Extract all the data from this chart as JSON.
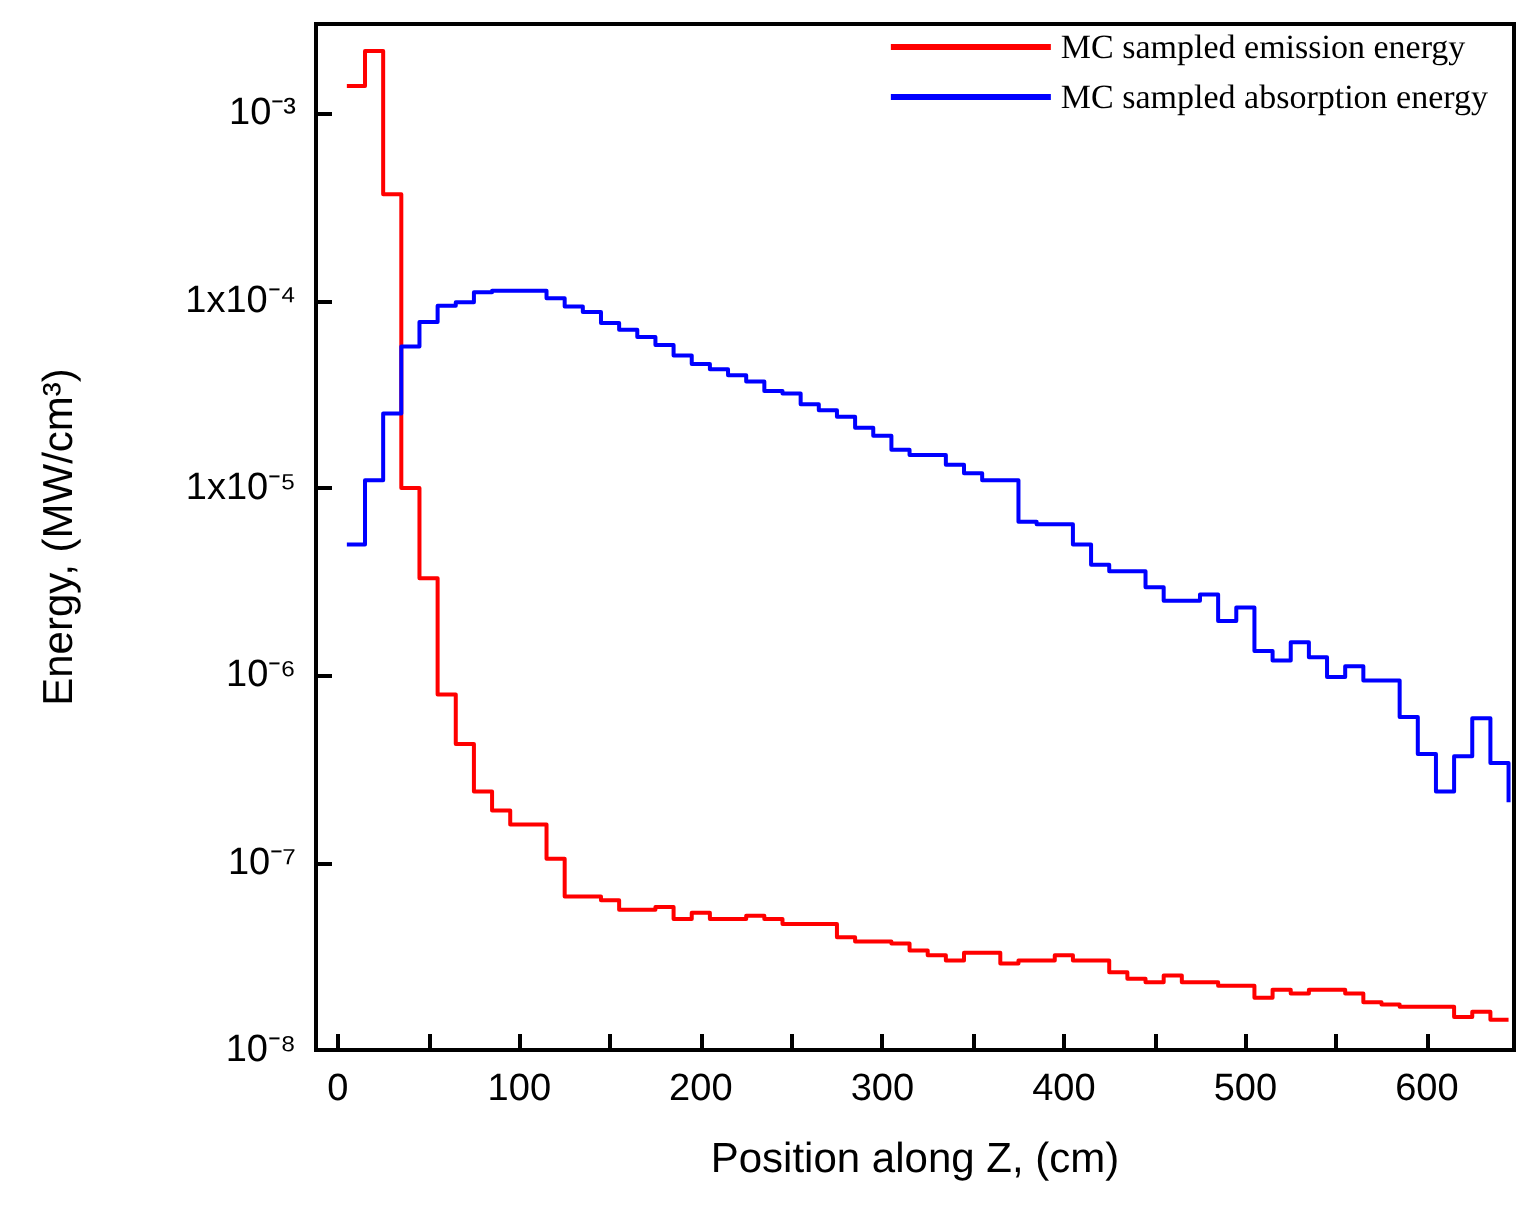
{
  "chart_data": {
    "type": "step",
    "xlabel": "Position along Z, (cm)",
    "ylabel": "Energy, (MW/cm³)",
    "log": "y",
    "legend": "top right",
    "grid": false,
    "marker": "none",
    "line_style": "solid",
    "x": [
      5,
      15,
      25,
      35,
      45,
      55,
      65,
      75,
      85,
      95,
      105,
      115,
      125,
      135,
      145,
      155,
      165,
      175,
      185,
      195,
      205,
      215,
      225,
      235,
      245,
      255,
      265,
      275,
      285,
      295,
      305,
      315,
      325,
      335,
      345,
      355,
      365,
      375,
      385,
      395,
      405,
      415,
      425,
      435,
      445,
      455,
      465,
      475,
      485,
      495,
      505,
      515,
      525,
      535,
      545,
      555,
      565,
      575,
      585,
      595,
      605,
      615,
      625,
      635,
      645
    ],
    "xlim": [
      -12,
      648
    ],
    "xticks": [
      0,
      {
        "value": 50,
        "label": null
      },
      100,
      {
        "value": 150,
        "label": null
      },
      200,
      {
        "value": 250,
        "label": null
      },
      300,
      {
        "value": 350,
        "label": null
      },
      400,
      {
        "value": 450,
        "label": null
      },
      500,
      {
        "value": 550,
        "label": null
      },
      600
    ],
    "ylim": [
      1e-08,
      0.003
    ],
    "yticks": [
      {
        "value": 1e-08,
        "label": "10⁻⁸"
      },
      {
        "value": 1e-07,
        "label": "10⁻⁷"
      },
      {
        "value": 1e-06,
        "label": "10⁻⁶"
      },
      {
        "value": 1e-05,
        "label": "1x10⁻⁵"
      },
      {
        "value": 0.0001,
        "label": "1x10⁻⁴"
      },
      {
        "value": 0.001,
        "label": "10⁻³"
      }
    ],
    "series": [
      {
        "name": "MC sampled emission energy",
        "color": "#ff0000",
        "values": [
          0.0014,
          0.00215,
          0.00037,
          1e-05,
          3.3e-06,
          7.9e-07,
          4.3e-07,
          2.4e-07,
          1.9e-07,
          1.6e-07,
          1.6e-07,
          1.05e-07,
          6.6e-08,
          6.6e-08,
          6.3e-08,
          5.6e-08,
          5.6e-08,
          5.8e-08,
          5e-08,
          5.4e-08,
          5e-08,
          5e-08,
          5.2e-08,
          5e-08,
          4.7e-08,
          4.7e-08,
          4.7e-08,
          4e-08,
          3.8e-08,
          3.8e-08,
          3.7e-08,
          3.4e-08,
          3.2e-08,
          3e-08,
          3.3e-08,
          3.3e-08,
          2.9e-08,
          3e-08,
          3e-08,
          3.2e-08,
          3e-08,
          3e-08,
          2.6e-08,
          2.4e-08,
          2.3e-08,
          2.5e-08,
          2.3e-08,
          2.3e-08,
          2.2e-08,
          2.2e-08,
          1.9e-08,
          2.1e-08,
          2e-08,
          2.1e-08,
          2.1e-08,
          2e-08,
          1.8e-08,
          1.75e-08,
          1.7e-08,
          1.7e-08,
          1.7e-08,
          1.5e-08,
          1.6e-08,
          1.45e-08,
          1.45e-08
        ]
      },
      {
        "name": "MC sampled absorption energy",
        "color": "#0000ff",
        "values": [
          5e-06,
          1.1e-05,
          2.5e-05,
          5.7e-05,
          7.7e-05,
          9.4e-05,
          9.8e-05,
          0.000111,
          0.000113,
          0.000113,
          0.000113,
          0.000103,
          9.3e-05,
          8.7e-05,
          7.6e-05,
          7e-05,
          6.4e-05,
          5.8e-05,
          5.1e-05,
          4.6e-05,
          4.3e-05,
          4e-05,
          3.7e-05,
          3.3e-05,
          3.2e-05,
          2.8e-05,
          2.6e-05,
          2.4e-05,
          2.1e-05,
          1.9e-05,
          1.6e-05,
          1.5e-05,
          1.5e-05,
          1.33e-05,
          1.2e-05,
          1.1e-05,
          1.1e-05,
          6.6e-06,
          6.4e-06,
          6.4e-06,
          5e-06,
          3.9e-06,
          3.6e-06,
          3.6e-06,
          2.95e-06,
          2.5e-06,
          2.5e-06,
          2.7e-06,
          1.95e-06,
          2.3e-06,
          1.35e-06,
          1.2e-06,
          1.5e-06,
          1.25e-06,
          9.8e-07,
          1.12e-06,
          9.4e-07,
          9.4e-07,
          6e-07,
          3.8e-07,
          2.4e-07,
          3.7e-07,
          5.9e-07,
          3.4e-07,
          2.1e-07
        ]
      }
    ]
  }
}
